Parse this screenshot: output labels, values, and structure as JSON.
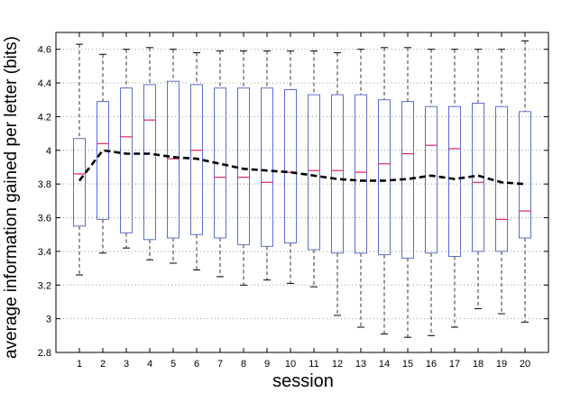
{
  "chart_data": {
    "type": "box",
    "title": "",
    "xlabel": "session",
    "ylabel": "average information gained per letter (bits)",
    "ylim": [
      2.8,
      4.7
    ],
    "grid": true,
    "yticks": [
      2.8,
      3,
      3.2,
      3.4,
      3.6,
      3.8,
      4,
      4.2,
      4.4,
      4.6
    ],
    "ytick_labels": [
      "2.8",
      "3",
      "3.2",
      "3.4",
      "3.6",
      "3.8",
      "4",
      "4.2",
      "4.4",
      "4.6"
    ],
    "categories": [
      "1",
      "2",
      "3",
      "4",
      "5",
      "6",
      "7",
      "8",
      "9",
      "10",
      "11",
      "12",
      "13",
      "14",
      "15",
      "16",
      "17",
      "18",
      "19",
      "20"
    ],
    "boxes": [
      {
        "whisker_low": 3.26,
        "q1": 3.55,
        "median": 3.86,
        "q3": 4.07,
        "whisker_high": 4.63
      },
      {
        "whisker_low": 3.39,
        "q1": 3.59,
        "median": 4.04,
        "q3": 4.29,
        "whisker_high": 4.57
      },
      {
        "whisker_low": 3.42,
        "q1": 3.51,
        "median": 4.08,
        "q3": 4.37,
        "whisker_high": 4.6
      },
      {
        "whisker_low": 3.35,
        "q1": 3.47,
        "median": 4.18,
        "q3": 4.39,
        "whisker_high": 4.61
      },
      {
        "whisker_low": 3.33,
        "q1": 3.48,
        "median": 3.95,
        "q3": 4.41,
        "whisker_high": 4.6
      },
      {
        "whisker_low": 3.29,
        "q1": 3.5,
        "median": 4.0,
        "q3": 4.39,
        "whisker_high": 4.58
      },
      {
        "whisker_low": 3.25,
        "q1": 3.48,
        "median": 3.84,
        "q3": 4.37,
        "whisker_high": 4.59
      },
      {
        "whisker_low": 3.2,
        "q1": 3.44,
        "median": 3.84,
        "q3": 4.37,
        "whisker_high": 4.59
      },
      {
        "whisker_low": 3.23,
        "q1": 3.43,
        "median": 3.81,
        "q3": 4.37,
        "whisker_high": 4.59
      },
      {
        "whisker_low": 3.21,
        "q1": 3.45,
        "median": 3.87,
        "q3": 4.36,
        "whisker_high": 4.59
      },
      {
        "whisker_low": 3.19,
        "q1": 3.41,
        "median": 3.88,
        "q3": 4.33,
        "whisker_high": 4.59
      },
      {
        "whisker_low": 3.02,
        "q1": 3.39,
        "median": 3.88,
        "q3": 4.33,
        "whisker_high": 4.58
      },
      {
        "whisker_low": 2.95,
        "q1": 3.39,
        "median": 3.87,
        "q3": 4.33,
        "whisker_high": 4.6
      },
      {
        "whisker_low": 2.91,
        "q1": 3.38,
        "median": 3.92,
        "q3": 4.3,
        "whisker_high": 4.61
      },
      {
        "whisker_low": 2.89,
        "q1": 3.36,
        "median": 3.98,
        "q3": 4.29,
        "whisker_high": 4.61
      },
      {
        "whisker_low": 2.9,
        "q1": 3.39,
        "median": 4.03,
        "q3": 4.26,
        "whisker_high": 4.6
      },
      {
        "whisker_low": 2.95,
        "q1": 3.37,
        "median": 4.01,
        "q3": 4.26,
        "whisker_high": 4.6
      },
      {
        "whisker_low": 3.06,
        "q1": 3.4,
        "median": 3.81,
        "q3": 4.28,
        "whisker_high": 4.6
      },
      {
        "whisker_low": 3.03,
        "q1": 3.4,
        "median": 3.59,
        "q3": 4.26,
        "whisker_high": 4.6
      },
      {
        "whisker_low": 2.98,
        "q1": 3.48,
        "median": 3.64,
        "q3": 4.23,
        "whisker_high": 4.65
      }
    ],
    "mean_line": [
      3.82,
      4.0,
      3.98,
      3.98,
      3.96,
      3.95,
      3.92,
      3.89,
      3.88,
      3.87,
      3.85,
      3.83,
      3.82,
      3.82,
      3.83,
      3.85,
      3.83,
      3.85,
      3.81,
      3.8
    ],
    "colors": {
      "box": "#5b6ec7",
      "median": "#e0245e",
      "whisker": "#333333",
      "mean_line": "#000000",
      "grid": "#999999"
    }
  }
}
